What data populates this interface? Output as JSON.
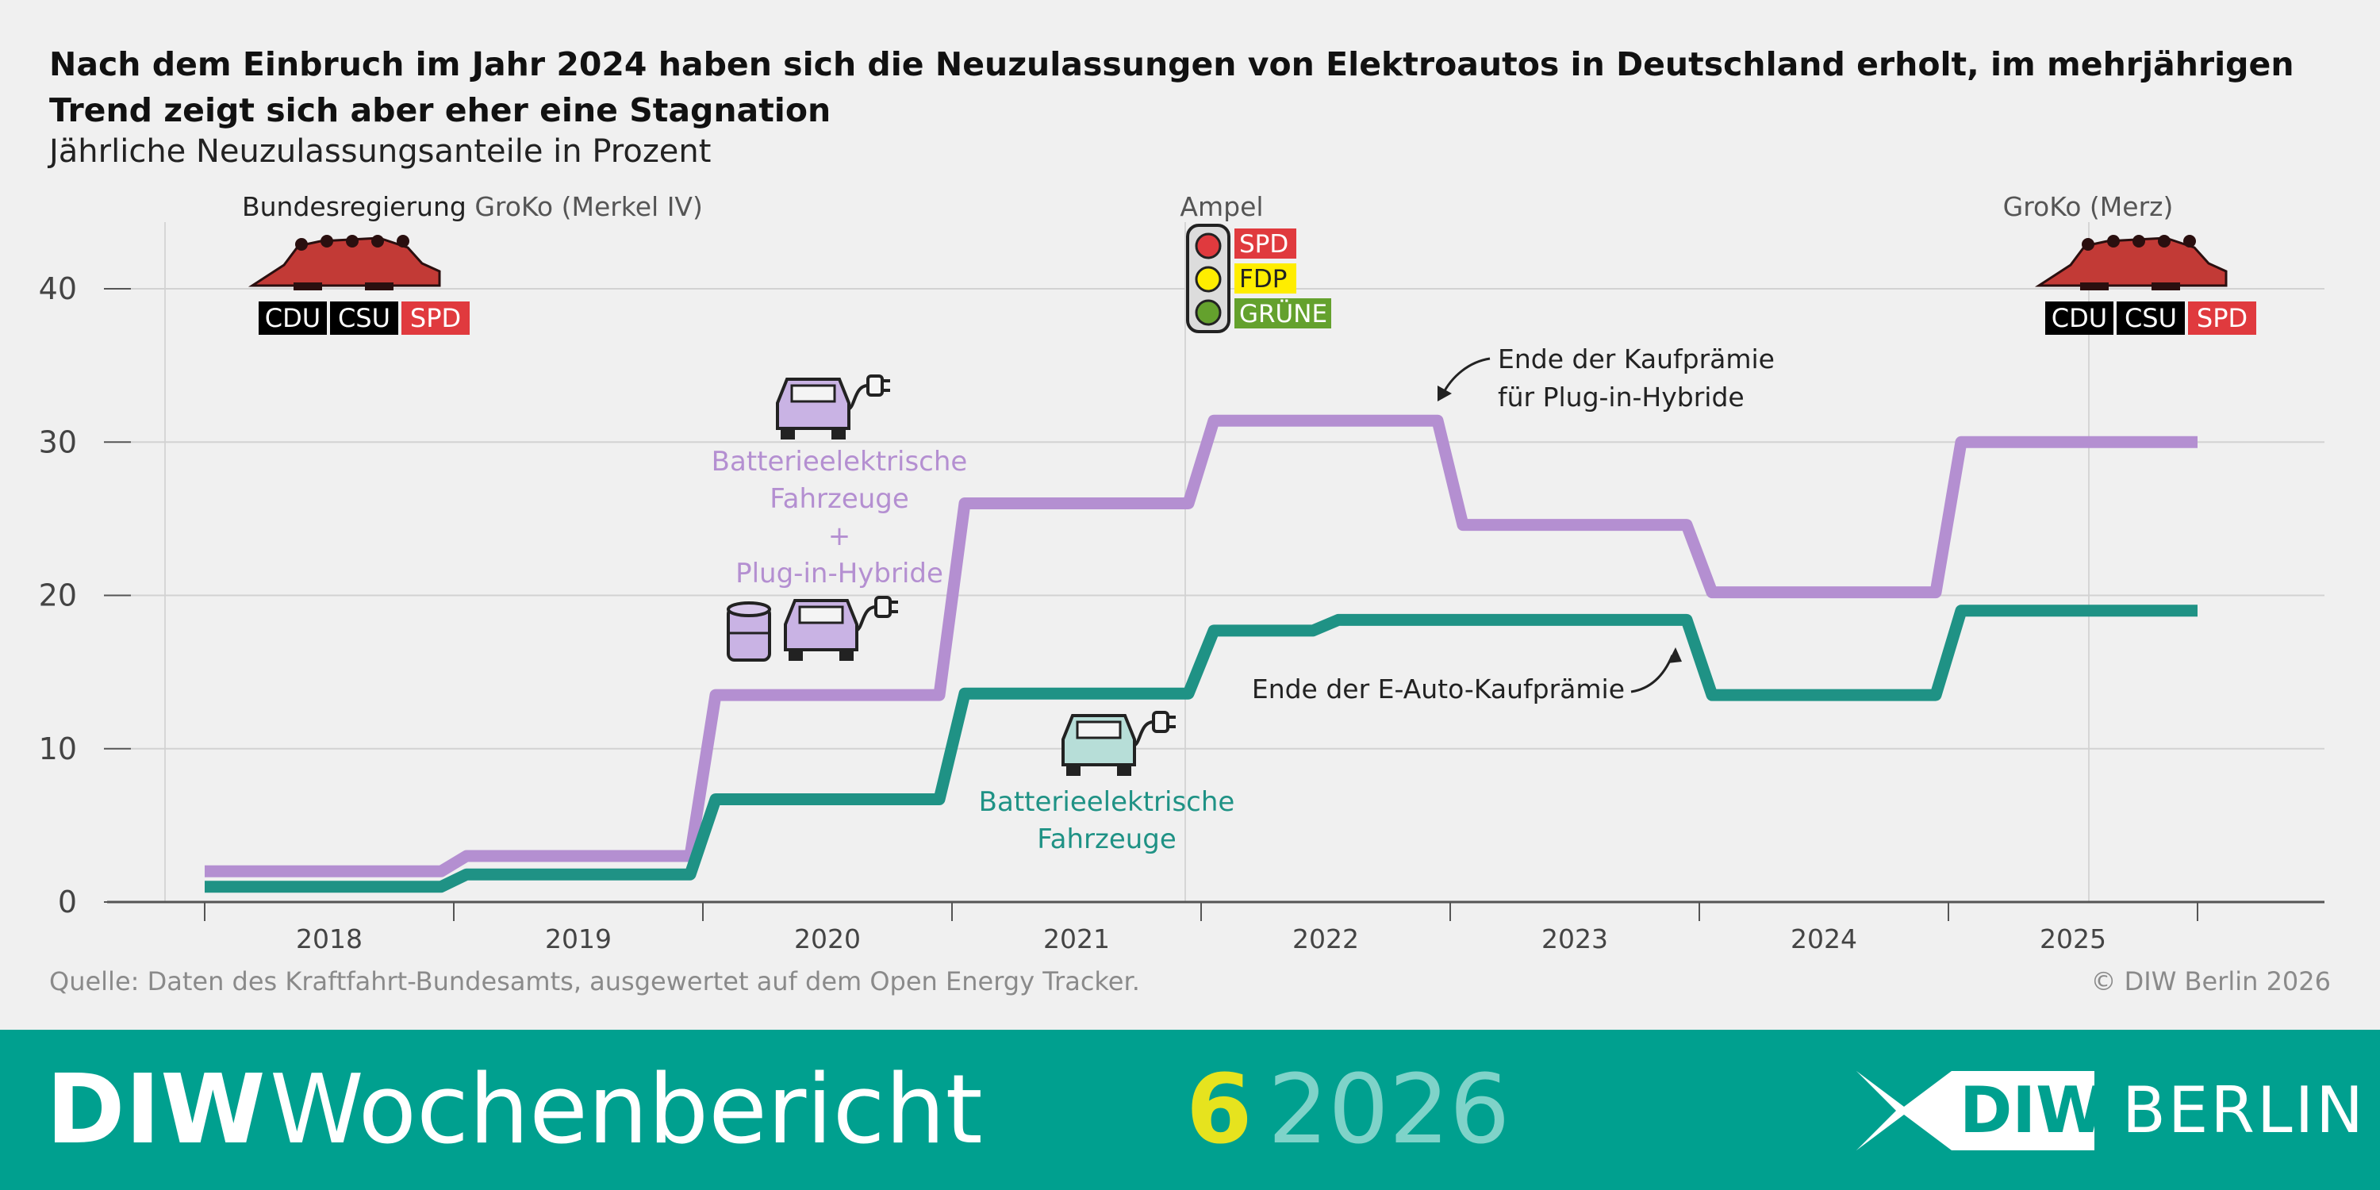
{
  "title": "Nach dem Einbruch im Jahr 2024 haben sich die Neuzulassungen von Elektroautos in Deutschland erholt, im mehrjährigen Trend zeigt sich aber eher eine Stagnation",
  "subtitle": "Jährliche Neuzulassungsanteile in Prozent",
  "source": "Quelle: Daten des Kraftfahrt-Bundesamts, ausgewertet auf dem Open Energy Tracker.",
  "copyright": "© DIW Berlin 2026",
  "footer": {
    "brand_bold": "DIW",
    "brand_regular": "Wochenbericht",
    "issue_number": "6",
    "issue_year": "2026",
    "logo_diw": "DIW",
    "logo_berlin": "BERLIN"
  },
  "colors": {
    "phev_bev": "#b48fd1",
    "bev": "#1f9285",
    "footer": "#00a08f",
    "spd": "#e03a3e",
    "fdp": "#ffed00",
    "gruene": "#64a12d",
    "union": "#000000",
    "croc": "#c23a36"
  },
  "icons": [
    "crocodile-icon",
    "traffic-light-icon",
    "electric-car-icon",
    "fuel-barrel-icon",
    "plug-icon"
  ],
  "chart_data": {
    "type": "line",
    "step": true,
    "ylim": [
      0,
      40
    ],
    "yticks": [
      0,
      10,
      20,
      30,
      40
    ],
    "grid": true,
    "xlim": [
      2017.5,
      2025.5
    ],
    "periods": [
      "2018",
      "2019",
      "2020",
      "2021",
      "2022",
      "2023",
      "2024",
      "2025"
    ],
    "series": [
      {
        "label": [
          "Batterieelektrische",
          "Fahrzeuge",
          "+",
          "Plug-in-Hybride"
        ],
        "color": "#b48fd1",
        "x": [
          2017.5,
          2018.5,
          2019.5,
          2020.5,
          2021.5,
          2022.5,
          2023.5,
          2024.5,
          2025.5
        ],
        "values": [
          2,
          3,
          13.5,
          26,
          31.4,
          24.6,
          20.2,
          30,
          30
        ]
      },
      {
        "label": [
          "Batterieelektrische",
          "Fahrzeuge"
        ],
        "color": "#1f9285",
        "x": [
          2017.5,
          2018.5,
          2019.5,
          2020.5,
          2021.5,
          2022,
          2023.5,
          2024.5,
          2025.5
        ],
        "values": [
          1,
          1.8,
          6.7,
          13.6,
          17.7,
          18.4,
          13.5,
          19,
          19
        ]
      }
    ],
    "governments": [
      {
        "header_bold": "Bundesregierung",
        "header": "GroKo (Merkel IV)",
        "parties": [
          "CDU",
          "CSU",
          "SPD"
        ]
      },
      {
        "header_bold": "",
        "header": "Ampel",
        "parties": [
          "SPD",
          "FDP",
          "GRÜNE"
        ]
      },
      {
        "header_bold": "",
        "header": "GroKo (Merz)",
        "parties": [
          "CDU",
          "CSU",
          "SPD"
        ]
      }
    ],
    "annotations": [
      {
        "lines": [
          "Ende der Kaufprämie",
          "für Plug-in-Hybride"
        ]
      },
      {
        "lines": [
          "Ende der E-Auto-Kaufprämie"
        ]
      }
    ]
  }
}
